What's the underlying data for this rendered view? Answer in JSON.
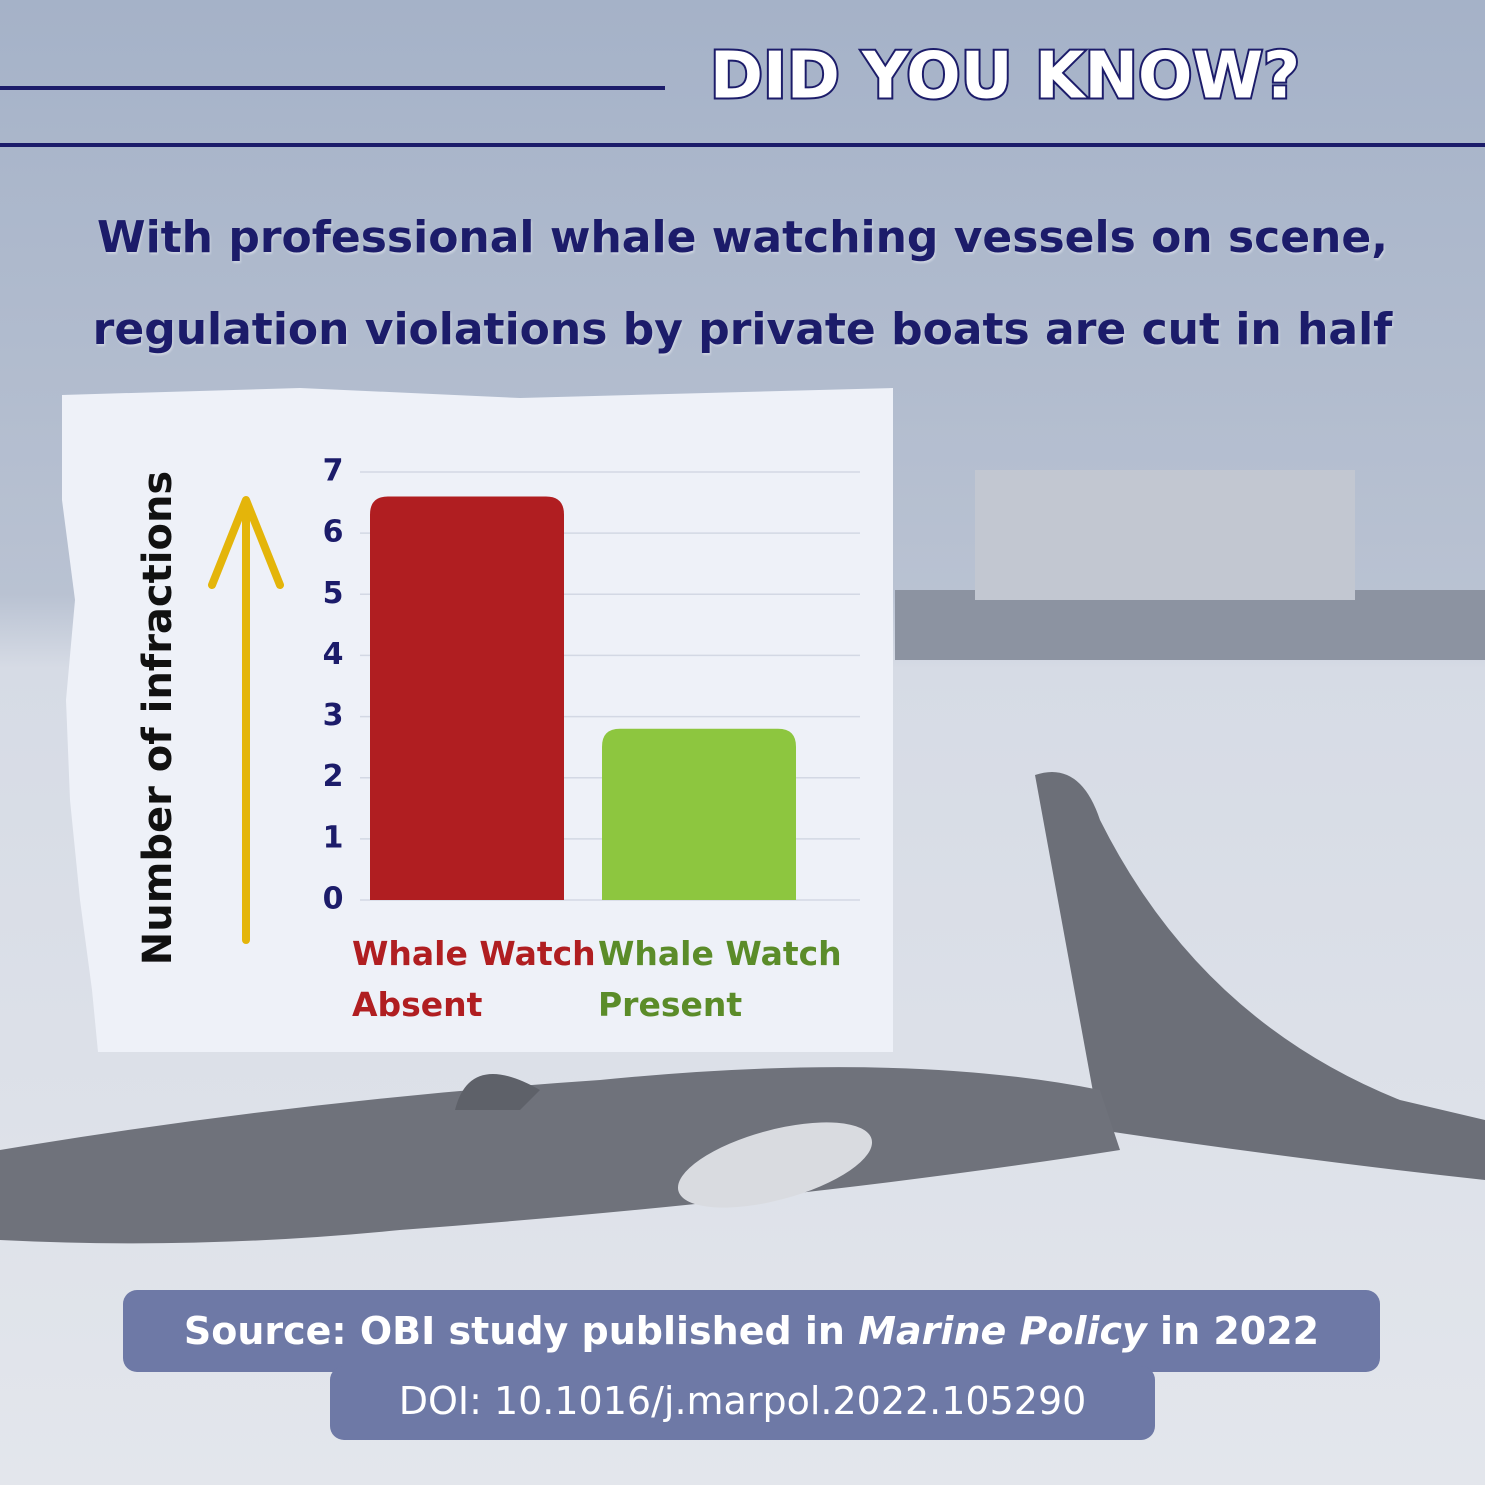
{
  "header": {
    "title": "DID YOU KNOW?"
  },
  "headline": "With professional whale watching vessels on scene, regulation violations by private boats are cut in half",
  "chart_data": {
    "type": "bar",
    "y_label": "Number of  infractions",
    "categories": [
      "Whale Watch Absent",
      "Whale Watch Present"
    ],
    "values": [
      6.6,
      2.8
    ],
    "colors": [
      "#b01e21",
      "#8dc63f"
    ],
    "label_colors": [
      "#b01e21",
      "#5b8c29"
    ],
    "ylim": [
      0,
      7
    ],
    "yticks": [
      0,
      1,
      2,
      3,
      4,
      5,
      6,
      7
    ],
    "grid": true
  },
  "source": {
    "prefix": "Source: OBI study published in",
    "journal": "Marine Policy",
    "suffix": "in 2022",
    "doi": "DOI: 10.1016/j.marpol.2022.105290"
  }
}
